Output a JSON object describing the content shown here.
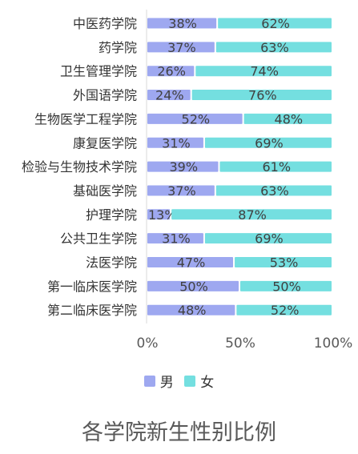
{
  "chart_data": {
    "type": "bar",
    "orientation": "horizontal",
    "stacked": true,
    "title": "各学院新生性别比例",
    "categories": [
      "中医药学院",
      "药学院",
      "卫生管理学院",
      "外国语学院",
      "生物医学工程学院",
      "康复医学院",
      "检验与生物技术学院",
      "基础医学院",
      "护理学院",
      "公共卫生学院",
      "法医学院",
      "第一临床医学院",
      "第二临床医学院"
    ],
    "series": [
      {
        "name": "男",
        "values": [
          38,
          37,
          26,
          24,
          52,
          31,
          39,
          37,
          13,
          31,
          47,
          50,
          48
        ],
        "data_labels": [
          "38%",
          "37%",
          "26%",
          "24%",
          "52%",
          "31%",
          "39%",
          "37%",
          "13%",
          "31%",
          "47%",
          "50%",
          "48%"
        ],
        "color": "#9ea8f0"
      },
      {
        "name": "女",
        "values": [
          62,
          63,
          74,
          76,
          48,
          69,
          61,
          63,
          87,
          69,
          53,
          50,
          52
        ],
        "data_labels": [
          "62%",
          "63%",
          "74%",
          "76%",
          "48%",
          "69%",
          "61%",
          "63%",
          "87%",
          "69%",
          "53%",
          "50%",
          "52%"
        ],
        "color": "#74dfe0"
      }
    ],
    "xlim": [
      0,
      100
    ],
    "x_ticks": [
      "0%",
      "50%",
      "100%"
    ],
    "grid": false,
    "legend": "bottom"
  }
}
